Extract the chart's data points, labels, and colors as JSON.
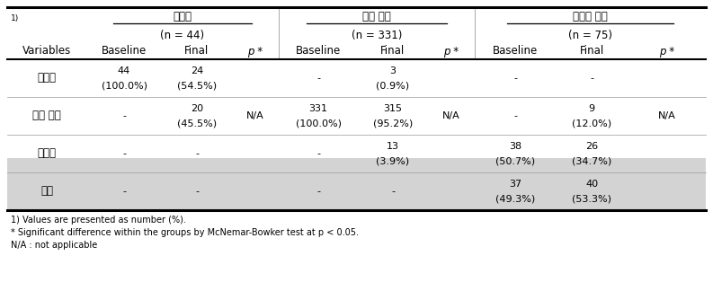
{
  "group_labels": [
    "저체중",
    "정상 체중",
    "과체중 이상"
  ],
  "group_ns": [
    "(n = 44)",
    "(n = 331)",
    "(n = 75)"
  ],
  "col_headers": [
    "Variables",
    "Baseline",
    "Final",
    "p *",
    "Baseline",
    "Final",
    "p *",
    "Baseline",
    "Final",
    "p *"
  ],
  "rows": [
    {
      "label": "저체중",
      "cells": [
        "44\n(100.0%)",
        "24\n(54.5%)",
        "",
        "-",
        "3\n(0.9%)",
        "",
        "-",
        "-",
        ""
      ]
    },
    {
      "label": "정상 체중",
      "cells": [
        "-",
        "20\n(45.5%)",
        "N/A",
        "331\n(100.0%)",
        "315\n(95.2%)",
        "N/A",
        "-",
        "9\n(12.0%)",
        "N/A"
      ]
    },
    {
      "label": "과체중",
      "cells": [
        "-",
        "-",
        "",
        "-",
        "13\n(3.9%)",
        "",
        "38\n(50.7%)",
        "26\n(34.7%)",
        ""
      ]
    },
    {
      "label": "비만",
      "cells": [
        "-",
        "-",
        "",
        "-",
        "-",
        "",
        "37\n(49.3%)",
        "40\n(53.3%)",
        ""
      ]
    }
  ],
  "footnotes": [
    "1) Values are presented as number (%).",
    "* Significant difference within the groups by McNemar-Bowker test at p < 0.05.",
    "N/A : not applicable"
  ],
  "header_bg": "#d3d3d3",
  "bg_color": "#ffffff"
}
